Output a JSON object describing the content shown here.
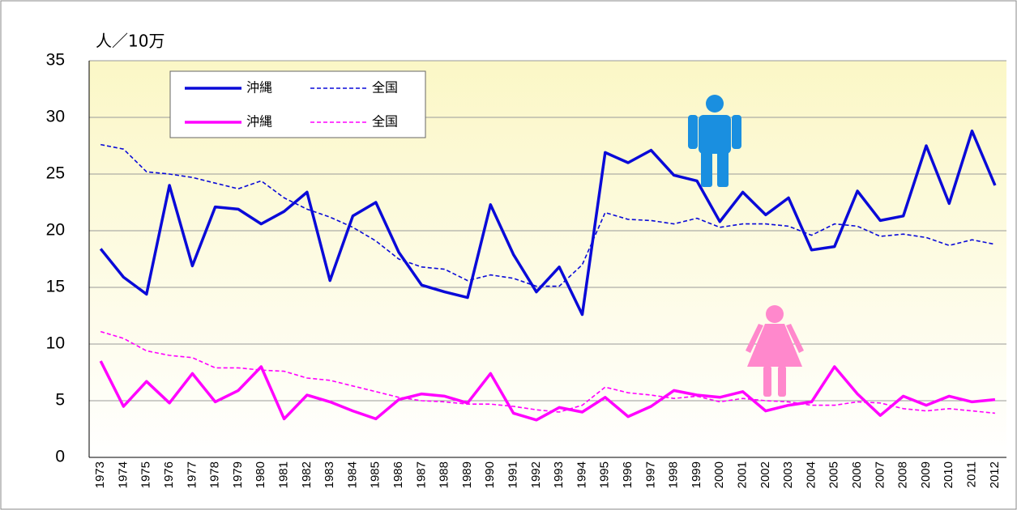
{
  "chart_data": {
    "type": "line",
    "y_unit_label": "人／10万",
    "categories": [
      "1973",
      "1974",
      "1975",
      "1976",
      "1977",
      "1978",
      "1979",
      "1980",
      "1981",
      "1982",
      "1983",
      "1984",
      "1985",
      "1986",
      "1987",
      "1988",
      "1989",
      "1990",
      "1991",
      "1992",
      "1993",
      "1994",
      "1995",
      "1996",
      "1997",
      "1998",
      "1999",
      "2000",
      "2001",
      "2002",
      "2003",
      "2004",
      "2005",
      "2006",
      "2007",
      "2008",
      "2009",
      "2010",
      "2011",
      "2012"
    ],
    "ylim": [
      0,
      35
    ],
    "yticks": [
      0,
      5,
      10,
      15,
      20,
      25,
      30,
      35
    ],
    "grid": true,
    "series": [
      {
        "name": "沖縄",
        "color": "#0a0ad8",
        "dashed": false,
        "values": [
          18.4,
          15.9,
          14.4,
          24.0,
          16.9,
          22.1,
          21.9,
          20.6,
          21.7,
          23.4,
          15.6,
          21.3,
          22.5,
          18.1,
          15.2,
          14.6,
          14.1,
          22.3,
          17.9,
          14.6,
          16.8,
          12.6,
          26.9,
          26.0,
          27.1,
          24.9,
          24.4,
          20.8,
          23.4,
          21.4,
          22.9,
          18.3,
          18.6,
          23.5,
          20.9,
          21.3,
          27.5,
          22.4,
          28.8,
          24.0
        ]
      },
      {
        "name": "全国",
        "color": "#0a0ad8",
        "dashed": true,
        "values": [
          27.6,
          27.2,
          25.2,
          25.0,
          24.7,
          24.2,
          23.7,
          24.4,
          22.9,
          21.9,
          21.2,
          20.3,
          19.1,
          17.5,
          16.8,
          16.6,
          15.6,
          16.1,
          15.8,
          15.1,
          15.1,
          17.0,
          21.6,
          21.0,
          20.9,
          20.6,
          21.1,
          20.3,
          20.6,
          20.6,
          20.4,
          19.6,
          20.6,
          20.4,
          19.5,
          19.7,
          19.4,
          18.7,
          19.2,
          18.8
        ]
      },
      {
        "name": "沖縄",
        "color": "#ff00ff",
        "dashed": false,
        "values": [
          8.5,
          4.5,
          6.7,
          4.8,
          7.4,
          4.9,
          5.9,
          8.0,
          3.4,
          5.5,
          4.9,
          4.1,
          3.4,
          5.1,
          5.6,
          5.4,
          4.8,
          7.4,
          3.9,
          3.3,
          4.4,
          4.0,
          5.3,
          3.6,
          4.5,
          5.9,
          5.5,
          5.3,
          5.8,
          4.1,
          4.6,
          4.9,
          8.0,
          5.6,
          3.7,
          5.4,
          4.6,
          5.4,
          4.9,
          5.1
        ]
      },
      {
        "name": "全国",
        "color": "#ff00ff",
        "dashed": true,
        "values": [
          11.1,
          10.5,
          9.4,
          9.0,
          8.8,
          7.9,
          7.9,
          7.7,
          7.6,
          7.0,
          6.8,
          6.3,
          5.8,
          5.3,
          5.0,
          4.9,
          4.7,
          4.7,
          4.5,
          4.2,
          4.0,
          4.6,
          6.2,
          5.7,
          5.5,
          5.2,
          5.4,
          4.9,
          5.2,
          5.0,
          4.9,
          4.6,
          4.6,
          4.9,
          4.8,
          4.3,
          4.1,
          4.3,
          4.1,
          3.9
        ]
      }
    ]
  }
}
